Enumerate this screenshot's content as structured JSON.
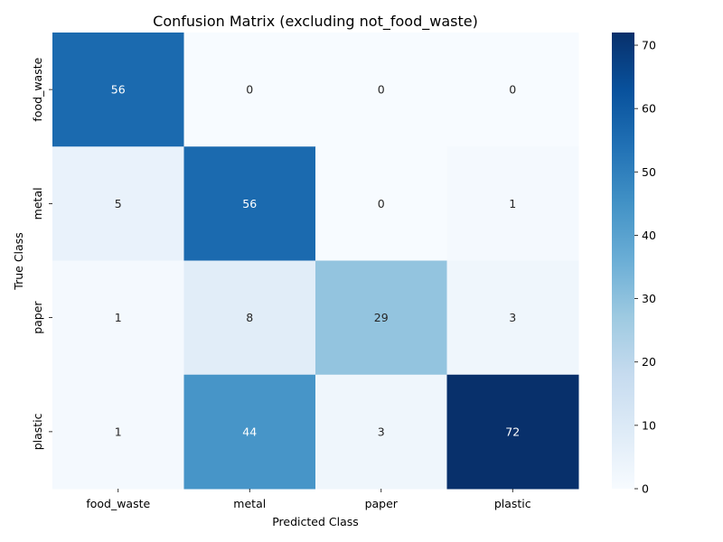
{
  "chart_data": {
    "type": "heatmap",
    "title": "Confusion Matrix (excluding not_food_waste)",
    "xlabel": "Predicted Class",
    "ylabel": "True Class",
    "x_categories": [
      "food_waste",
      "metal",
      "paper",
      "plastic"
    ],
    "y_categories": [
      "food_waste",
      "metal",
      "paper",
      "plastic"
    ],
    "values": [
      [
        56,
        0,
        0,
        0
      ],
      [
        5,
        56,
        0,
        1
      ],
      [
        1,
        8,
        29,
        3
      ],
      [
        1,
        44,
        3,
        72
      ]
    ],
    "colorbar": {
      "min": 0,
      "max": 72,
      "ticks": [
        0,
        10,
        20,
        30,
        40,
        50,
        60,
        70
      ],
      "colormap": "Blues"
    },
    "annotations": true
  }
}
